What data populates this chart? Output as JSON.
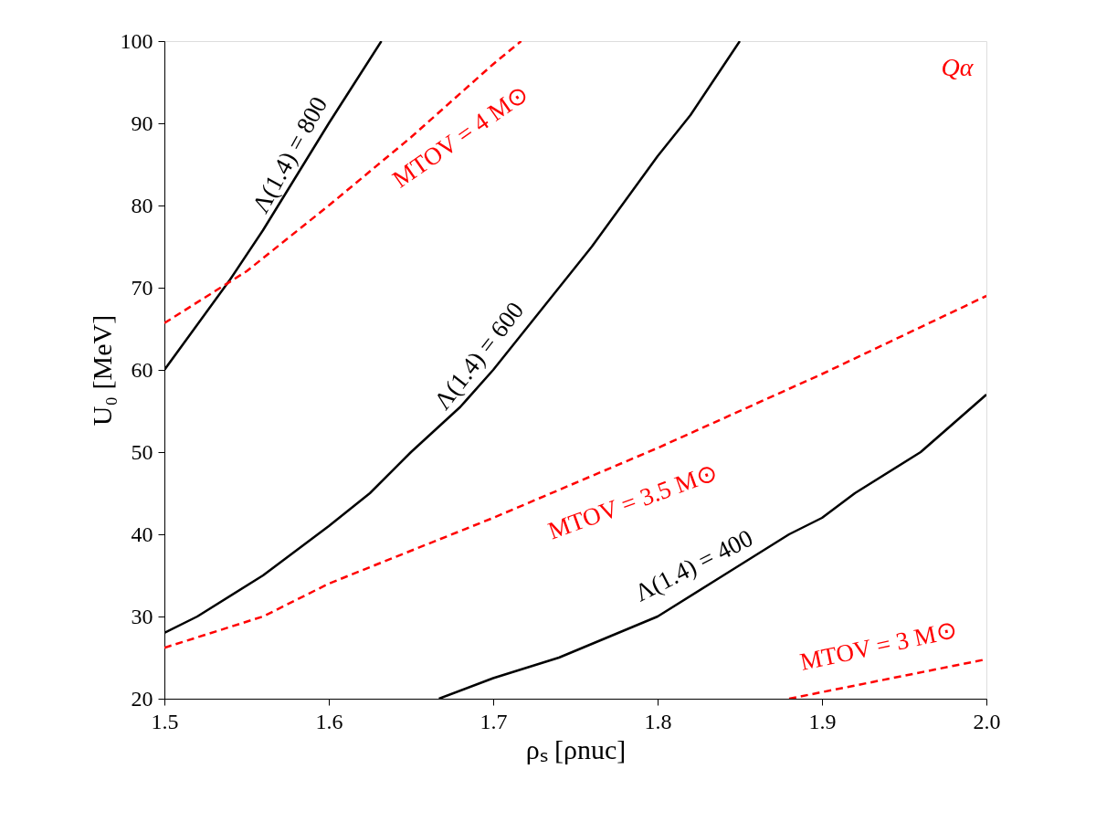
{
  "chart_data": {
    "type": "line",
    "xlabel": "ρₛ [ρnuc]",
    "ylabel": "U₀ [MeV]",
    "xlim": [
      1.5,
      2.0
    ],
    "xticks": [
      1.5,
      1.6,
      1.7,
      1.8,
      1.9,
      {
        "value": 2,
        "label": "2.0"
      }
    ],
    "ylim": [
      20,
      100
    ],
    "yticks": [
      20,
      30,
      40,
      50,
      60,
      70,
      80,
      90,
      100
    ],
    "grid": false,
    "marker": "none",
    "series": [
      {
        "color": "#000000",
        "line_style": "solid",
        "x": [
          1.5,
          1.52,
          1.54,
          1.56,
          1.58,
          1.6,
          1.632
        ],
        "values": [
          60,
          65.5,
          71,
          77,
          83.5,
          90,
          100
        ]
      },
      {
        "color": "#000000",
        "line_style": "solid",
        "x": [
          1.5,
          1.52,
          1.56,
          1.6,
          1.625,
          1.65,
          1.68,
          1.7,
          1.74,
          1.76,
          1.8,
          1.82,
          1.84,
          1.85
        ],
        "values": [
          28,
          30,
          35,
          41,
          45,
          50,
          55.5,
          60,
          70,
          75,
          86,
          91,
          97,
          100
        ]
      },
      {
        "color": "#000000",
        "line_style": "solid",
        "x": [
          1.667,
          1.7,
          1.74,
          1.8,
          1.84,
          1.88,
          1.9,
          1.92,
          1.96,
          2.0
        ],
        "values": [
          20,
          22.5,
          25,
          30,
          35,
          40,
          42,
          45,
          50,
          57
        ]
      },
      {
        "color": "#ff0000",
        "line_style": "dashed",
        "x": [
          1.5,
          1.55,
          1.6,
          1.65,
          1.7,
          1.717
        ],
        "values": [
          65.7,
          72,
          80,
          88.3,
          97.2,
          100
        ]
      },
      {
        "color": "#ff0000",
        "line_style": "dashed",
        "x": [
          1.5,
          1.56,
          1.6,
          1.7,
          1.8,
          1.9,
          2.0
        ],
        "values": [
          26.2,
          30,
          34,
          42,
          50.5,
          59.5,
          69
        ]
      },
      {
        "color": "#ff0000",
        "line_style": "dashed",
        "x": [
          1.88,
          2.0
        ],
        "values": [
          20,
          24.8
        ]
      }
    ],
    "annotations": [
      "Λ(1.4) = 800",
      "Λ(1.4) = 600",
      "Λ(1.4) = 400",
      "MTOV = 4 M⊙",
      "MTOV = 3.5 M⊙",
      "MTOV = 3 M⊙",
      "Qα"
    ]
  }
}
